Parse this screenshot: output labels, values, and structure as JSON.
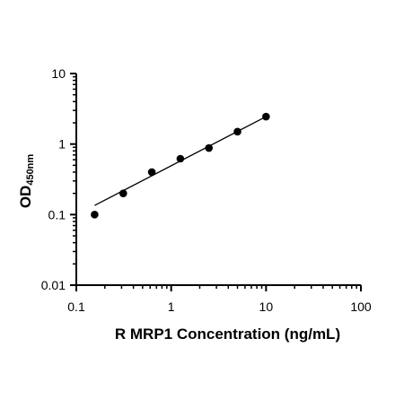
{
  "chart_data": {
    "type": "scatter",
    "xscale": "log",
    "yscale": "log",
    "xlim": [
      0.1,
      100
    ],
    "ylim": [
      0.01,
      10
    ],
    "xlabel": "R MRP1 Concentration (ng/mL)",
    "ylabel": {
      "main": "OD",
      "subscript": "450nm"
    },
    "xticks": [
      {
        "value": 0.1,
        "label": "0.1"
      },
      {
        "value": 1,
        "label": "1"
      },
      {
        "value": 10,
        "label": "10"
      },
      {
        "value": 100,
        "label": "100"
      }
    ],
    "yticks": [
      {
        "value": 0.01,
        "label": "0.01"
      },
      {
        "value": 0.1,
        "label": "0.1"
      },
      {
        "value": 1,
        "label": "1"
      },
      {
        "value": 10,
        "label": "10"
      }
    ],
    "series": [
      {
        "points": [
          {
            "x": 0.156,
            "y": 0.1
          },
          {
            "x": 0.3125,
            "y": 0.2
          },
          {
            "x": 0.625,
            "y": 0.4
          },
          {
            "x": 1.25,
            "y": 0.62
          },
          {
            "x": 2.5,
            "y": 0.88
          },
          {
            "x": 5,
            "y": 1.5
          },
          {
            "x": 10,
            "y": 2.45
          }
        ],
        "fit_line": {
          "x": [
            0.156,
            10
          ],
          "y": [
            0.135,
            2.45
          ]
        }
      }
    ],
    "grid": false,
    "legend": "none",
    "colors": {
      "marker": "#000000",
      "line": "#000000",
      "axis": "#000000"
    }
  }
}
